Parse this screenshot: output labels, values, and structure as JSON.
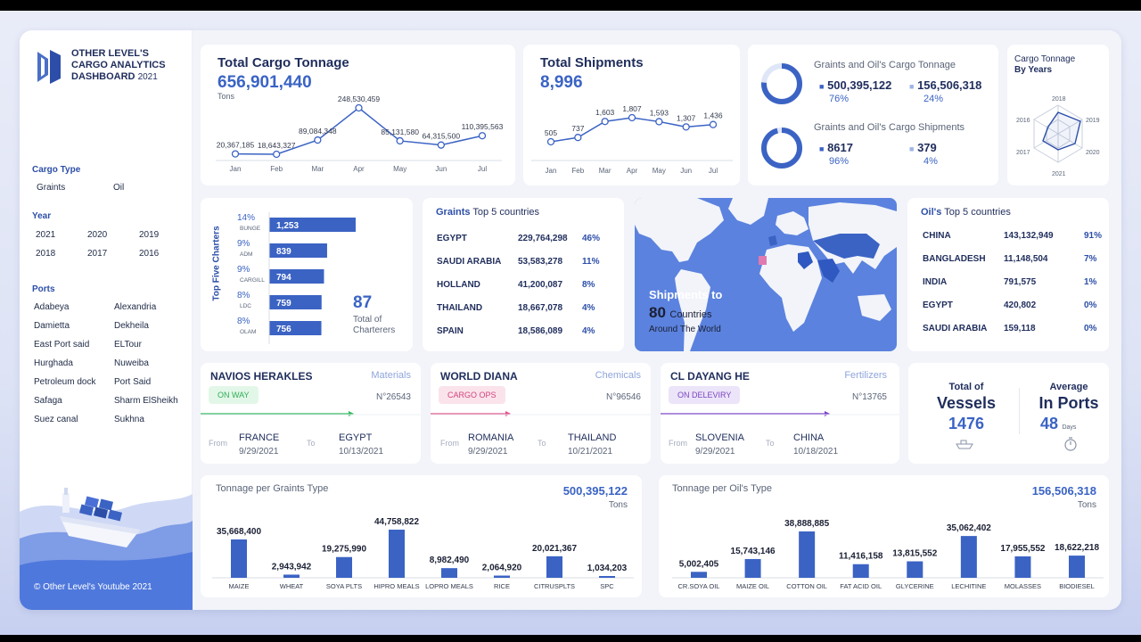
{
  "sidebar": {
    "title_line1": "OTHER LEVEL'S",
    "title_line2": "CARGO ANALYTICS",
    "title_line3": "DASHBOARD",
    "title_year": "2021",
    "cargo_type_header": "Cargo Type",
    "cargo_types": [
      "Graints",
      "Oil"
    ],
    "year_header": "Year",
    "years": [
      "2021",
      "2020",
      "2019",
      "2018",
      "2017",
      "2016"
    ],
    "ports_header": "Ports",
    "ports": [
      "Adabeya",
      "Alexandria",
      "Damietta",
      "Dekheila",
      "East Port said",
      "ELTour",
      "Hurghada",
      "Nuweiba",
      "Petroleum dock",
      "Port Said",
      "Safaga",
      "Sharm ElSheikh",
      "Suez canal",
      "Sukhna"
    ],
    "footer": "© Other Level's Youtube 2021"
  },
  "tonnage_card": {
    "title": "Total Cargo Tonnage",
    "value": "656,901,440",
    "unit": "Tons",
    "labels": [
      "20,367,185",
      "18,643,327",
      "89,084,348",
      "248,530,459",
      "85,131,580",
      "64,315,500",
      "110,395,563"
    ]
  },
  "shipments_card": {
    "title": "Total Shipments",
    "value": "8,996",
    "labels": [
      "505",
      "737",
      "1,603",
      "1,807",
      "1,593",
      "1,307",
      "1,436"
    ]
  },
  "months": [
    "Jan",
    "Feb",
    "Mar",
    "Apr",
    "May",
    "Jun",
    "Jul"
  ],
  "share_card": {
    "tonnage_title": "Graints and Oil's Cargo Tonnage",
    "tonnage_graints": "500,395,122",
    "tonnage_graints_pct": "76%",
    "tonnage_oil": "156,506,318",
    "tonnage_oil_pct": "24%",
    "shipments_title": "Graints and Oil's Cargo Shipments",
    "shipments_graints": "8617",
    "shipments_graints_pct": "96%",
    "shipments_oil": "379",
    "shipments_oil_pct": "4%",
    "tonnage_graints_share": 0.76,
    "shipments_graints_share": 0.96
  },
  "radar_card": {
    "title_line1": "Cargo Tonnage",
    "title_line2": "By Years",
    "axes": [
      "2018",
      "2019",
      "2020",
      "2021",
      "2017",
      "2016"
    ]
  },
  "charterers_card": {
    "axis_title": "Top Five Charters",
    "total": "87",
    "total_label_line1": "Total of",
    "total_label_line2": "Charterers",
    "items": [
      {
        "pct": "14%",
        "name": "BUNGE",
        "value": "1,253"
      },
      {
        "pct": "9%",
        "name": "ADM",
        "value": "839"
      },
      {
        "pct": "9%",
        "name": "CARGILL",
        "value": "794"
      },
      {
        "pct": "8%",
        "name": "LDC",
        "value": "759"
      },
      {
        "pct": "8%",
        "name": "OLAM",
        "value": "756"
      }
    ]
  },
  "graints_top": {
    "title_bold": "Graints",
    "title_rest": "Top 5 countries",
    "rows": [
      {
        "country": "EGYPT",
        "value": "229,764,298",
        "pct": "46%"
      },
      {
        "country": "SAUDI ARABIA",
        "value": "53,583,278",
        "pct": "11%"
      },
      {
        "country": "HOLLAND",
        "value": "41,200,087",
        "pct": "8%"
      },
      {
        "country": "THAILAND",
        "value": "18,667,078",
        "pct": "4%"
      },
      {
        "country": "SPAIN",
        "value": "18,586,089",
        "pct": "4%"
      }
    ]
  },
  "map_card": {
    "line1": "Shipments to",
    "count": "80",
    "countries_word": "Countries",
    "line3": "Around The World"
  },
  "oil_top": {
    "title_bold": "Oil's",
    "title_rest": "Top 5 countries",
    "rows": [
      {
        "country": "CHINA",
        "value": "143,132,949",
        "pct": "91%"
      },
      {
        "country": "BANGLADESH",
        "value": "11,148,504",
        "pct": "7%"
      },
      {
        "country": "INDIA",
        "value": "791,575",
        "pct": "1%"
      },
      {
        "country": "EGYPT",
        "value": "420,802",
        "pct": "0%"
      },
      {
        "country": "SAUDI ARABIA",
        "value": "159,118",
        "pct": "0%"
      }
    ]
  },
  "vessels": [
    {
      "name": "NAVIOS HERAKLES",
      "category": "Materials",
      "status": "ON WAY",
      "number": "N°26543",
      "from_label": "From",
      "from": "FRANCE",
      "from_date": "9/29/2021",
      "to_label": "To",
      "to": "EGYPT",
      "to_date": "10/13/2021",
      "status_bg": "#e3f7e8",
      "status_fg": "#2fae57",
      "line_color": "#2fb85a"
    },
    {
      "name": "WORLD DIANA",
      "category": "Chemicals",
      "status": "CARGO OPS",
      "number": "N°96546",
      "from_label": "From",
      "from": "ROMANIA",
      "from_date": "9/29/2021",
      "to_label": "To",
      "to": "THAILAND",
      "to_date": "10/21/2021",
      "status_bg": "#fbe3ec",
      "status_fg": "#d0457a",
      "line_color": "#e0508a"
    },
    {
      "name": "CL DAYANG HE",
      "category": "Fertilizers",
      "status": "ON DELEVIRY",
      "number": "N°13765",
      "from_label": "From",
      "from": "SLOVENIA",
      "from_date": "9/29/2021",
      "to_label": "To",
      "to": "CHINA",
      "to_date": "10/18/2021",
      "status_bg": "#ece4f8",
      "status_fg": "#7a45c0",
      "line_color": "#7a3fc8"
    }
  ],
  "vessels_summary": {
    "total_label": "Total of",
    "total_word": "Vessels",
    "total_value": "1476",
    "avg_label": "Average",
    "avg_word": "In Ports",
    "avg_value": "48",
    "avg_unit": "Days"
  },
  "graints_type_card": {
    "title": "Tonnage per Graints Type",
    "total": "500,395,122",
    "unit": "Tons"
  },
  "oil_type_card": {
    "title": "Tonnage per Oil's Type",
    "total": "156,506,318",
    "unit": "Tons"
  },
  "chart_data": [
    {
      "type": "line",
      "name": "tonnage",
      "x": [
        "Jan",
        "Feb",
        "Mar",
        "Apr",
        "May",
        "Jun",
        "Jul"
      ],
      "values": [
        20367185,
        18643327,
        89084348,
        248530459,
        85131580,
        64315500,
        110395563
      ]
    },
    {
      "type": "line",
      "name": "shipments",
      "x": [
        "Jan",
        "Feb",
        "Mar",
        "Apr",
        "May",
        "Jun",
        "Jul"
      ],
      "values": [
        505,
        737,
        1603,
        1807,
        1593,
        1307,
        1436
      ]
    },
    {
      "type": "bar",
      "name": "charterers",
      "categories": [
        "BUNGE",
        "ADM",
        "CARGILL",
        "LDC",
        "OLAM"
      ],
      "values": [
        1253,
        839,
        794,
        759,
        756
      ]
    },
    {
      "type": "bar",
      "name": "graints_type",
      "title": "Tonnage per Graints Type",
      "categories": [
        "MAIZE",
        "WHEAT",
        "SOYA PLTS",
        "HIPRO MEALS",
        "LOPRO MEALS",
        "RICE",
        "CITRUSPLTS",
        "SPC"
      ],
      "values": [
        35668400,
        2943942,
        19275990,
        44758822,
        8982490,
        2064920,
        20021367,
        1034203
      ],
      "labels": [
        "35,668,400",
        "2,943,942",
        "19,275,990",
        "44,758,822",
        "8,982,490",
        "2,064,920",
        "20,021,367",
        "1,034,203"
      ]
    },
    {
      "type": "bar",
      "name": "oil_type",
      "title": "Tonnage per Oil's Type",
      "categories": [
        "CR.SOYA OIL",
        "MAIZE OIL",
        "COTTON OIL",
        "FAT ACID OIL",
        "GLYCERINE",
        "LECHITINE",
        "MOLASSES",
        "BIODIESEL"
      ],
      "values": [
        5002405,
        15743146,
        38888885,
        11416158,
        13815552,
        35062402,
        17955552,
        18622218
      ],
      "labels": [
        "5,002,405",
        "15,743,146",
        "38,888,885",
        "11,416,158",
        "13,815,552",
        "35,062,402",
        "17,955,552",
        "18,622,218"
      ]
    }
  ],
  "colors": {
    "accent": "#3b63c4",
    "navy": "#1f2d5c",
    "light_ring": "#dfe6f7"
  }
}
